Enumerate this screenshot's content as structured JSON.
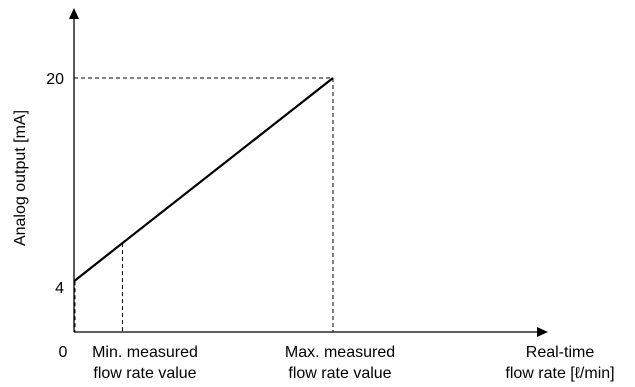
{
  "chart_data": {
    "type": "line",
    "ylabel": "Analog output [mA]",
    "xlabel_lines": [
      "Real-time",
      "flow rate [ℓ/min]"
    ],
    "y_ticks": [
      "4",
      "20"
    ],
    "origin_label": "0",
    "x_markers": [
      {
        "lines": [
          "Min. measured",
          "flow rate value"
        ]
      },
      {
        "lines": [
          "Max. measured",
          "flow rate value"
        ]
      }
    ],
    "series": [
      {
        "x": [
          0,
          0.187,
          1.0
        ],
        "y": [
          4,
          7.0,
          20
        ]
      }
    ],
    "x_range": [
      0,
      1.0
    ],
    "ylim": [
      0,
      20
    ],
    "grid": false
  }
}
